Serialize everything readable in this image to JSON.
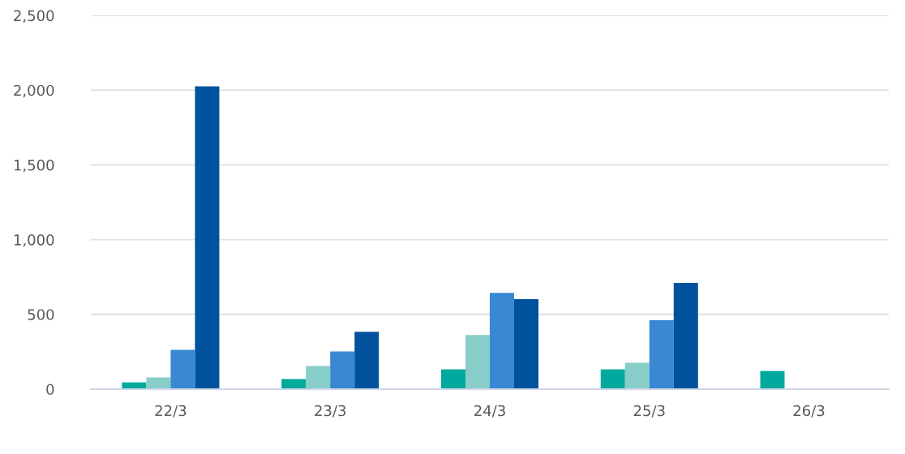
{
  "chart_data": {
    "type": "bar",
    "categories": [
      "22/3",
      "23/3",
      "24/3",
      "25/3",
      "26/3"
    ],
    "series": [
      {
        "color": "#00a99d",
        "values": [
          45,
          67,
          132,
          132,
          121
        ]
      },
      {
        "color": "#86cec7",
        "values": [
          78,
          154,
          362,
          176,
          null
        ]
      },
      {
        "color": "#3a87d3",
        "values": [
          263,
          252,
          644,
          460,
          null
        ]
      },
      {
        "color": "#00529c",
        "values": [
          2025,
          383,
          601,
          710,
          null
        ]
      }
    ],
    "ylim": [
      0,
      2500
    ],
    "yticks": [
      0,
      500,
      {
        "value": 1000,
        "label": "1,000"
      },
      {
        "value": 1500,
        "label": "1,500"
      },
      {
        "value": 2000,
        "label": "2,000"
      },
      {
        "value": 2500,
        "label": "2,500"
      }
    ],
    "grid": "y"
  }
}
